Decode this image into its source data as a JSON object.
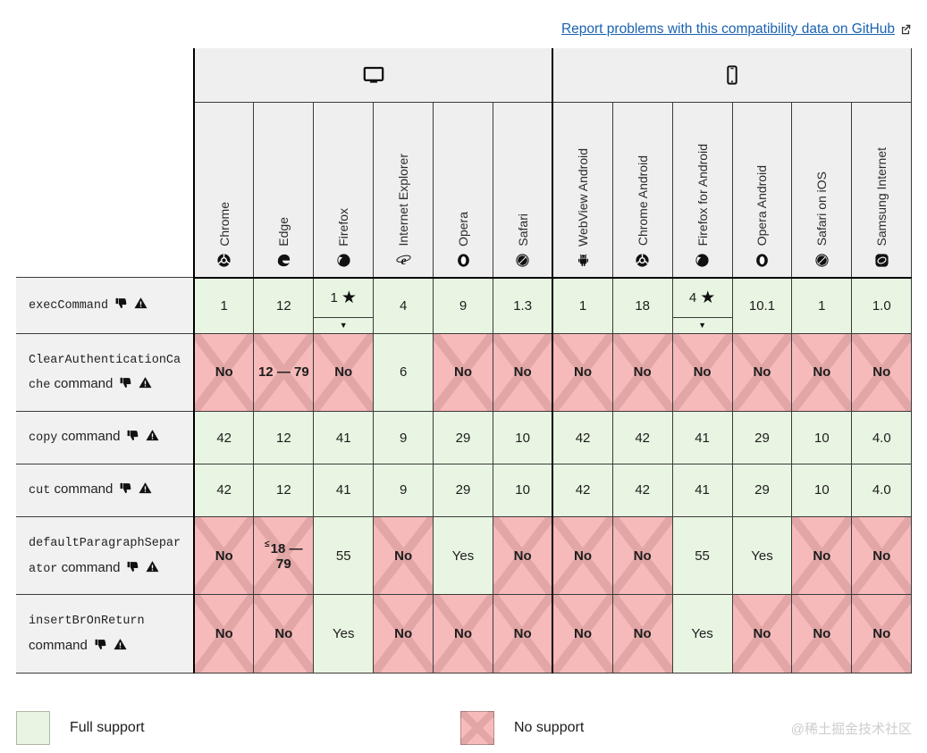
{
  "link": {
    "label": "Report problems with this compatibility data on GitHub"
  },
  "colors": {
    "full_support_bg": "#e8f5e2",
    "no_support_bg": "#f7baba",
    "no_support_cross": "#e2a6a6",
    "header_bg": "#efefef",
    "link": "#1a62b0"
  },
  "table": {
    "star_glyph": "★",
    "expander_glyph": "▼",
    "platforms": [
      {
        "name": "desktop",
        "icon": "desktop-icon",
        "span": 6
      },
      {
        "name": "mobile",
        "icon": "mobile-icon",
        "span": 6
      }
    ],
    "browsers": [
      {
        "id": "chrome",
        "label": "Chrome",
        "icon": "chrome"
      },
      {
        "id": "edge",
        "label": "Edge",
        "icon": "edge"
      },
      {
        "id": "firefox",
        "label": "Firefox",
        "icon": "firefox"
      },
      {
        "id": "internet-explorer",
        "label": "Internet Explorer",
        "icon": "ie"
      },
      {
        "id": "opera",
        "label": "Opera",
        "icon": "opera"
      },
      {
        "id": "safari",
        "label": "Safari",
        "icon": "safari"
      },
      {
        "id": "webview-android",
        "label": "WebView Android",
        "icon": "android"
      },
      {
        "id": "chrome-android",
        "label": "Chrome Android",
        "icon": "chrome"
      },
      {
        "id": "firefox-android",
        "label": "Firefox for Android",
        "icon": "firefox"
      },
      {
        "id": "opera-android",
        "label": "Opera Android",
        "icon": "opera"
      },
      {
        "id": "safari-ios",
        "label": "Safari on iOS",
        "icon": "safari"
      },
      {
        "id": "samsung-internet",
        "label": "Samsung Internet",
        "icon": "samsung"
      }
    ],
    "rows": [
      {
        "feature": {
          "parts": [
            {
              "text": "execCommand",
              "mono": true
            }
          ],
          "deprecated": true,
          "warning": true
        },
        "cells": [
          {
            "text": "1",
            "support": "full"
          },
          {
            "text": "12",
            "support": "full"
          },
          {
            "text": "1",
            "support": "full",
            "history": true
          },
          {
            "text": "4",
            "support": "full"
          },
          {
            "text": "9",
            "support": "full"
          },
          {
            "text": "1.3",
            "support": "full"
          },
          {
            "text": "1",
            "support": "full"
          },
          {
            "text": "18",
            "support": "full"
          },
          {
            "text": "4",
            "support": "full",
            "history": true
          },
          {
            "text": "10.1",
            "support": "full"
          },
          {
            "text": "1",
            "support": "full"
          },
          {
            "text": "1.0",
            "support": "full"
          }
        ]
      },
      {
        "feature": {
          "parts": [
            {
              "text": "ClearAuthenticationCache",
              "mono": true
            },
            {
              "text": " command",
              "mono": false
            }
          ],
          "deprecated": true,
          "warning": true
        },
        "cells": [
          {
            "text": "No",
            "support": "none",
            "bold": true
          },
          {
            "text": "12 — 79",
            "support": "none",
            "bold": true
          },
          {
            "text": "No",
            "support": "none",
            "bold": true
          },
          {
            "text": "6",
            "support": "full"
          },
          {
            "text": "No",
            "support": "none",
            "bold": true
          },
          {
            "text": "No",
            "support": "none",
            "bold": true
          },
          {
            "text": "No",
            "support": "none",
            "bold": true
          },
          {
            "text": "No",
            "support": "none",
            "bold": true
          },
          {
            "text": "No",
            "support": "none",
            "bold": true
          },
          {
            "text": "No",
            "support": "none",
            "bold": true
          },
          {
            "text": "No",
            "support": "none",
            "bold": true
          },
          {
            "text": "No",
            "support": "none",
            "bold": true
          }
        ]
      },
      {
        "feature": {
          "parts": [
            {
              "text": "copy",
              "mono": true
            },
            {
              "text": " command",
              "mono": false
            }
          ],
          "deprecated": true,
          "warning": true
        },
        "cells": [
          {
            "text": "42",
            "support": "full"
          },
          {
            "text": "12",
            "support": "full"
          },
          {
            "text": "41",
            "support": "full"
          },
          {
            "text": "9",
            "support": "full"
          },
          {
            "text": "29",
            "support": "full"
          },
          {
            "text": "10",
            "support": "full"
          },
          {
            "text": "42",
            "support": "full"
          },
          {
            "text": "42",
            "support": "full"
          },
          {
            "text": "41",
            "support": "full"
          },
          {
            "text": "29",
            "support": "full"
          },
          {
            "text": "10",
            "support": "full"
          },
          {
            "text": "4.0",
            "support": "full"
          }
        ]
      },
      {
        "feature": {
          "parts": [
            {
              "text": "cut",
              "mono": true
            },
            {
              "text": " command",
              "mono": false
            }
          ],
          "deprecated": true,
          "warning": true
        },
        "cells": [
          {
            "text": "42",
            "support": "full"
          },
          {
            "text": "12",
            "support": "full"
          },
          {
            "text": "41",
            "support": "full"
          },
          {
            "text": "9",
            "support": "full"
          },
          {
            "text": "29",
            "support": "full"
          },
          {
            "text": "10",
            "support": "full"
          },
          {
            "text": "42",
            "support": "full"
          },
          {
            "text": "42",
            "support": "full"
          },
          {
            "text": "41",
            "support": "full"
          },
          {
            "text": "29",
            "support": "full"
          },
          {
            "text": "10",
            "support": "full"
          },
          {
            "text": "4.0",
            "support": "full"
          }
        ]
      },
      {
        "feature": {
          "parts": [
            {
              "text": "defaultParagraphSeparator",
              "mono": true
            },
            {
              "text": " command",
              "mono": false
            }
          ],
          "deprecated": true,
          "warning": true
        },
        "cells": [
          {
            "text": "No",
            "support": "none",
            "bold": true
          },
          {
            "prefix": "≤",
            "text": "18 — 79",
            "support": "none",
            "bold": true
          },
          {
            "text": "55",
            "support": "full"
          },
          {
            "text": "No",
            "support": "none",
            "bold": true
          },
          {
            "text": "Yes",
            "support": "full"
          },
          {
            "text": "No",
            "support": "none",
            "bold": true
          },
          {
            "text": "No",
            "support": "none",
            "bold": true
          },
          {
            "text": "No",
            "support": "none",
            "bold": true
          },
          {
            "text": "55",
            "support": "full"
          },
          {
            "text": "Yes",
            "support": "full"
          },
          {
            "text": "No",
            "support": "none",
            "bold": true
          },
          {
            "text": "No",
            "support": "none",
            "bold": true
          }
        ]
      },
      {
        "feature": {
          "parts": [
            {
              "text": "insertBrOnReturn",
              "mono": true
            },
            {
              "text": " command",
              "mono": false
            }
          ],
          "deprecated": true,
          "warning": true
        },
        "cells": [
          {
            "text": "No",
            "support": "none",
            "bold": true
          },
          {
            "text": "No",
            "support": "none",
            "bold": true
          },
          {
            "text": "Yes",
            "support": "full"
          },
          {
            "text": "No",
            "support": "none",
            "bold": true
          },
          {
            "text": "No",
            "support": "none",
            "bold": true
          },
          {
            "text": "No",
            "support": "none",
            "bold": true
          },
          {
            "text": "No",
            "support": "none",
            "bold": true
          },
          {
            "text": "No",
            "support": "none",
            "bold": true
          },
          {
            "text": "Yes",
            "support": "full"
          },
          {
            "text": "No",
            "support": "none",
            "bold": true
          },
          {
            "text": "No",
            "support": "none",
            "bold": true
          },
          {
            "text": "No",
            "support": "none",
            "bold": true
          }
        ]
      }
    ]
  },
  "legend": [
    {
      "type": "full",
      "label": "Full support"
    },
    {
      "type": "none",
      "label": "No support"
    }
  ],
  "watermark": "@稀土掘金技术社区"
}
